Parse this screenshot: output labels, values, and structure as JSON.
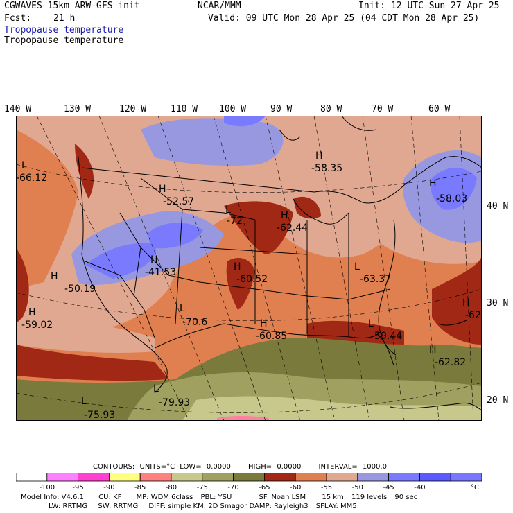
{
  "header": {
    "model": "CGWAVES 15km ARW-GFS init",
    "fcst_label": "Fcst:",
    "fcst_value": "21 h",
    "org": "NCAR/MMM",
    "init": "Init: 12 UTC Sun 27 Apr 25",
    "valid": "Valid: 09 UTC Mon 28 Apr 25 (04 CDT Mon 28 Apr 25)",
    "field_title": "Tropopause temperature",
    "field_title_2": "Tropopause temperature"
  },
  "lon_labels": [
    "140 W",
    "130 W",
    "120 W",
    "110 W",
    "100 W",
    "90 W",
    "80 W",
    "70 W",
    "60 W"
  ],
  "lat_labels": [
    "40 N",
    "30 N",
    "20 N"
  ],
  "extrema": [
    {
      "type": "L",
      "value": "-66.12"
    },
    {
      "type": "H",
      "value": "-58.35"
    },
    {
      "type": "H",
      "value": "-52.57"
    },
    {
      "type": "L",
      "value": "-72"
    },
    {
      "type": "H",
      "value": "-62.44"
    },
    {
      "type": "H",
      "value": "-58.03"
    },
    {
      "type": "H",
      "value": "-41.53"
    },
    {
      "type": "H",
      "value": "-50.19"
    },
    {
      "type": "H",
      "value": "-60.52"
    },
    {
      "type": "L",
      "value": "-63.37"
    },
    {
      "type": "H",
      "value": "-59.02"
    },
    {
      "type": "L",
      "value": "-70.6"
    },
    {
      "type": "H",
      "value": "-60.85"
    },
    {
      "type": "L",
      "value": "-59.44"
    },
    {
      "type": "H",
      "value": "-62"
    },
    {
      "type": "H",
      "value": "-62.82"
    },
    {
      "type": "L",
      "value": "-79.93"
    },
    {
      "type": "L",
      "value": "-75.93"
    }
  ],
  "contour_info": {
    "contours": "CONTOURS:",
    "units": "UNITS=°C",
    "low": "LOW=",
    "low_val": "0.0000",
    "high": "HIGH=",
    "high_val": "0.0000",
    "interval": "INTERVAL=",
    "interval_val": "1000.0"
  },
  "colorbar": {
    "colors": [
      "#ffffff",
      "#ff80ff",
      "#ff40d0",
      "#ffff80",
      "#ff8080",
      "#c8c88c",
      "#a0a060",
      "#7a7a3c",
      "#a02814",
      "#e08050",
      "#e0a890",
      "#9898e0",
      "#7a7aff",
      "#5a5aff",
      "#7878ff"
    ],
    "ticks": [
      "-100",
      "-95",
      "-90",
      "-85",
      "-80",
      "-75",
      "-70",
      "-65",
      "-60",
      "-55",
      "-50",
      "-45",
      "-40"
    ],
    "unit": "°C"
  },
  "footer": {
    "line1": [
      "Model Info: V4.6.1",
      "CU: KF",
      "MP: WDM 6class",
      "PBL: YSU",
      "SF: Noah LSM",
      "15 km",
      "119 levels",
      "90 sec"
    ],
    "line2": [
      "LW: RRTMG",
      "SW: RRTMG",
      "DIFF: simple KM: 2D Smagor DAMP: Rayleigh3",
      "SFLAY: MM5"
    ]
  }
}
